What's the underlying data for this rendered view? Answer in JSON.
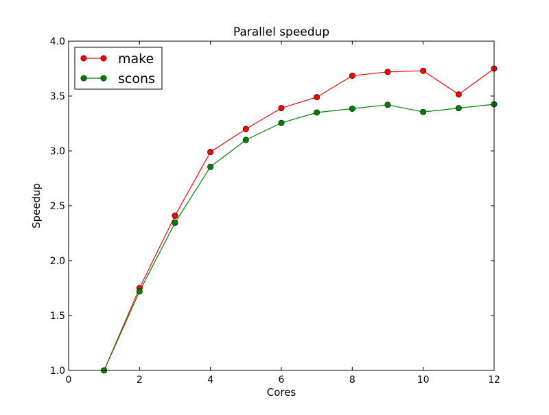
{
  "chart_data": {
    "type": "line",
    "title": "Parallel speedup",
    "xlabel": "Cores",
    "ylabel": "Speedup",
    "xlim": [
      0,
      12
    ],
    "ylim": [
      1.0,
      4.0
    ],
    "x_ticks": [
      "0",
      "2",
      "4",
      "6",
      "8",
      "10",
      "12"
    ],
    "y_ticks": [
      "1.0",
      "1.5",
      "2.0",
      "2.5",
      "3.0",
      "3.5",
      "4.0"
    ],
    "x": [
      1,
      2,
      3,
      4,
      5,
      6,
      7,
      8,
      9,
      10,
      11,
      12
    ],
    "series": [
      {
        "name": "make",
        "color": "#ff0000",
        "values": [
          1.0,
          1.75,
          2.41,
          2.99,
          3.2,
          3.39,
          3.49,
          3.685,
          3.72,
          3.73,
          3.515,
          3.75
        ]
      },
      {
        "name": "scons",
        "color": "#008000",
        "values": [
          1.0,
          1.72,
          2.345,
          2.855,
          3.1,
          3.255,
          3.35,
          3.385,
          3.42,
          3.355,
          3.39,
          3.425
        ]
      }
    ],
    "grid": false,
    "legend_position": "top-left"
  }
}
